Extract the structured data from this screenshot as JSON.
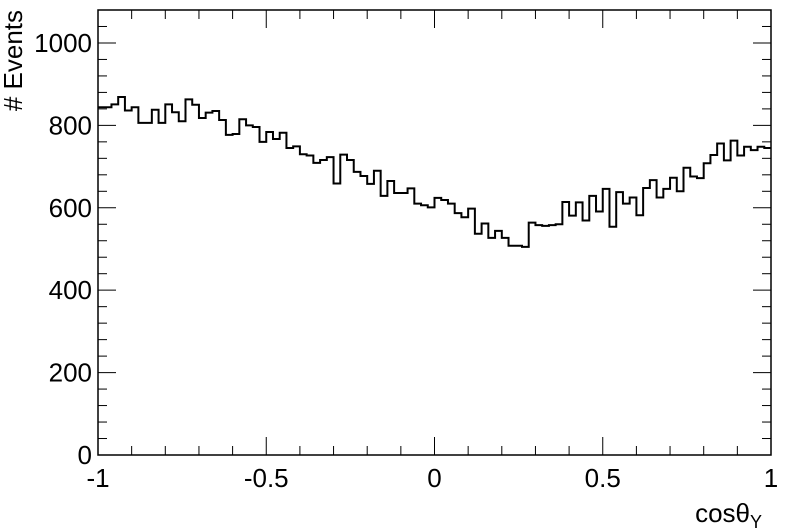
{
  "chart_data": {
    "type": "histogram",
    "xlabel": "cosθ",
    "xlabel_sub": "Y",
    "ylabel": "# Events",
    "xlim": [
      -1,
      1
    ],
    "ylim": [
      0,
      1080
    ],
    "x_ticks": [
      -1,
      -0.5,
      0,
      0.5,
      1
    ],
    "x_tick_labels": [
      "-1",
      "-0.5",
      "0",
      "0.5",
      "1"
    ],
    "y_ticks": [
      0,
      200,
      400,
      600,
      800,
      1000
    ],
    "y_tick_labels": [
      "0",
      "200",
      "400",
      "600",
      "800",
      "1000"
    ],
    "grid": false,
    "legend": "none",
    "line_color": "#000000",
    "bin_edges_range": [
      -1,
      1
    ],
    "n_bins": 100,
    "values": [
      844,
      844,
      851,
      869,
      836,
      844,
      806,
      806,
      838,
      806,
      851,
      832,
      810,
      863,
      850,
      818,
      831,
      835,
      813,
      777,
      779,
      815,
      800,
      796,
      760,
      784,
      767,
      782,
      745,
      749,
      730,
      727,
      709,
      716,
      723,
      659,
      729,
      716,
      687,
      677,
      658,
      690,
      629,
      665,
      636,
      636,
      647,
      610,
      606,
      601,
      624,
      619,
      610,
      587,
      577,
      598,
      537,
      562,
      527,
      544,
      527,
      508,
      508,
      505,
      564,
      558,
      556,
      558,
      560,
      614,
      581,
      613,
      569,
      629,
      591,
      646,
      554,
      638,
      610,
      625,
      582,
      648,
      667,
      625,
      646,
      673,
      640,
      697,
      676,
      672,
      708,
      728,
      756,
      715,
      763,
      727,
      748,
      740,
      748,
      745
    ]
  }
}
